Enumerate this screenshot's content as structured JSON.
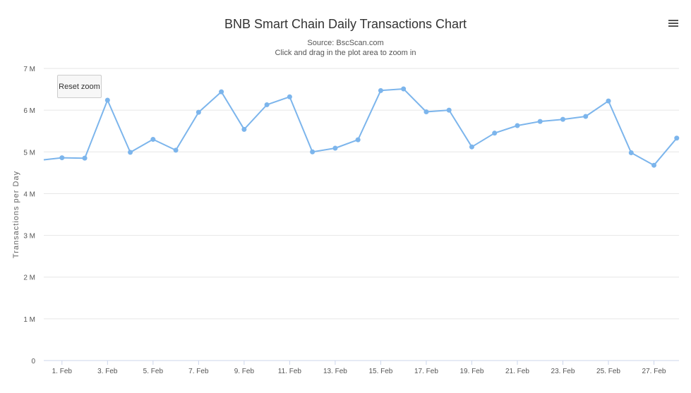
{
  "title": "BNB Smart Chain Daily Transactions Chart",
  "subtitle_source": "Source: BscScan.com",
  "subtitle_hint": "Click and drag in the plot area to zoom in",
  "reset_zoom_label": "Reset zoom",
  "menu_icon": "hamburger-menu-icon",
  "chart_data": {
    "type": "line",
    "ylabel": "Transactions per Day",
    "ylim": [
      0,
      7000000
    ],
    "yticks": [
      0,
      1000000,
      2000000,
      3000000,
      4000000,
      5000000,
      6000000,
      7000000
    ],
    "ytick_labels": [
      "0",
      "1 M",
      "2 M",
      "3 M",
      "4 M",
      "5 M",
      "6 M",
      "7 M"
    ],
    "xlim": [
      0.2,
      28.1
    ],
    "xtick_values": [
      1,
      3,
      5,
      7,
      9,
      11,
      13,
      15,
      17,
      19,
      21,
      23,
      25,
      27
    ],
    "xtick_labels": [
      "1. Feb",
      "3. Feb",
      "5. Feb",
      "7. Feb",
      "9. Feb",
      "11. Feb",
      "13. Feb",
      "15. Feb",
      "17. Feb",
      "19. Feb",
      "21. Feb",
      "23. Feb",
      "25. Feb",
      "27. Feb"
    ],
    "grid": true,
    "line_color": "#7cb5ec",
    "x": [
      1,
      2,
      3,
      4,
      5,
      6,
      7,
      8,
      9,
      10,
      11,
      12,
      13,
      14,
      15,
      16,
      17,
      18,
      19,
      20,
      21,
      22,
      23,
      24,
      25,
      26,
      27,
      28
    ],
    "values": [
      4860000,
      4850000,
      6240000,
      4990000,
      5300000,
      5040000,
      5950000,
      6440000,
      5540000,
      6130000,
      6320000,
      5000000,
      5090000,
      5290000,
      6470000,
      6510000,
      5960000,
      6000000,
      5120000,
      5450000,
      5630000,
      5730000,
      5780000,
      5850000,
      6220000,
      4980000,
      4680000,
      5330000
    ],
    "leading_value": 4810000
  }
}
